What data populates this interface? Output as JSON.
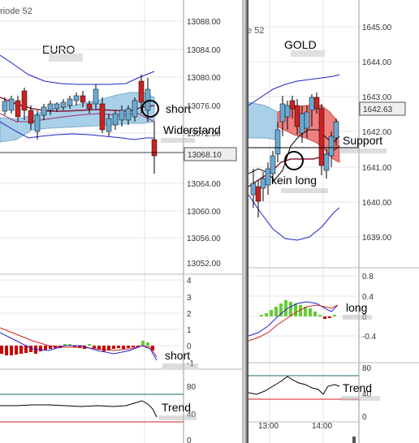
{
  "left": {
    "header": "riode  52",
    "instrument": "EURO",
    "price_ticks": [
      "13088.00",
      "13084.00",
      "13080.00",
      "13076.00",
      "13072.00",
      "13068.10",
      "13064.00",
      "13060.00",
      "13056.00",
      "13052.00"
    ],
    "current_price": "13068.10",
    "annotations": {
      "short_top": "short",
      "resistance": "Widerstand",
      "short_mid": "short",
      "trend": "Trend"
    },
    "macd_ticks": [
      "4",
      "3",
      "2",
      "1",
      "0",
      "-1"
    ],
    "trend_ticks": [
      "80",
      "40",
      "0"
    ]
  },
  "right": {
    "header": "e  52",
    "instrument": "GOLD",
    "price_ticks": [
      "1645.00",
      "1644.00",
      "1643.00",
      "1642.63",
      "1642.00",
      "1641.00",
      "1640.00",
      "1639.00"
    ],
    "current_price": "1642.63",
    "annotations": {
      "support": "Support",
      "no_long": "kein long",
      "long": "long",
      "trend": "Trend"
    },
    "macd_ticks": [
      "0.8",
      "0.4",
      "0",
      "-0.4"
    ],
    "trend_ticks": [
      "80",
      "40",
      "0"
    ],
    "time_ticks": [
      "13:00",
      "14:00"
    ]
  },
  "colors": {
    "cloud_blue": "#a8d0e8",
    "cloud_red": "#f08080",
    "band": "#2222cc",
    "macd_pos": "#66cc33",
    "macd_neg": "#cc0000",
    "trend_line": "#1a6a6a",
    "trend_red": "#cc2222"
  }
}
